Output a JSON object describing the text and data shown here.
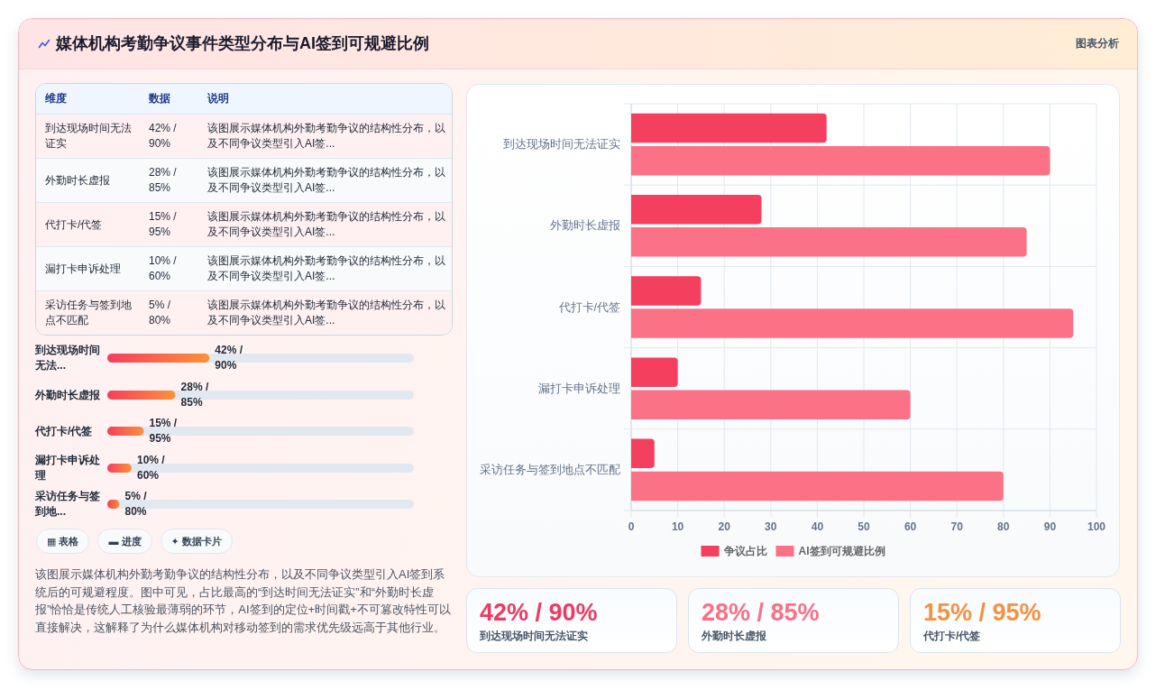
{
  "chart_data": [
    {
      "type": "other",
      "title": "媒体机构考勤争议事件类型分布与AI签到可规避比例",
      "annotations": [
        "图表分析"
      ]
    },
    {
      "type": "other",
      "categories": [
        "维度",
        "数据",
        "说明"
      ],
      "cell_labels": [
        [
          "到达现场时间无法证实",
          "42% / 90%",
          "该图展示媒体机构外勤考勤争议的结构性分布，以及不同争议类型引入AI签..."
        ],
        [
          "外勤时长虚报",
          "28% / 85%",
          "该图展示媒体机构外勤考勤争议的结构性分布，以及不同争议类型引入AI签..."
        ],
        [
          "代打卡/代签",
          "15% / 95%",
          "该图展示媒体机构外勤考勤争议的结构性分布，以及不同争议类型引入AI签..."
        ],
        [
          "漏打卡申诉处理",
          "10% / 60%",
          "该图展示媒体机构外勤考勤争议的结构性分布，以及不同争议类型引入AI签..."
        ],
        [
          "采访任务与签到地点不匹配",
          "5% / 80%",
          "该图展示媒体机构外勤考勤争议的结构性分布，以及不同争议类型引入AI签..."
        ]
      ]
    },
    {
      "type": "bar",
      "orientation": "horizontal",
      "categories": [
        "到达现场时间无法...",
        "外勤时长虚报",
        "代打卡/代签",
        "漏打卡申诉处理",
        "采访任务与签到地..."
      ],
      "series": [
        {
          "color": "#f43f5e",
          "values": [
            42,
            28,
            15,
            10,
            5
          ],
          "value_labels": [
            "42% / 90%",
            "28% / 85%",
            "15% / 95%",
            "10% / 60%",
            "5% / 80%"
          ]
        }
      ],
      "tick_labels": "y"
    },
    {
      "type": "other",
      "annotations": [
        "▦ 表格",
        "▬ 进度",
        "✦ 数据卡片"
      ]
    },
    {
      "type": "other",
      "annotations": [
        "该图展示媒体机构外勤考勤争议的结构性分布，以及不同争议类型引入AI签到系统后的可规避程度。图中可见，占比最高的“到达时间无法证实”和“外勤时长虚报”恰恰是传统人工核验最薄弱的环节，AI签到的定位+时间戳+不可篡改特性可以直接解决，这解释了为什么媒体机构对移动签到的需求优先级远高于其他行业。"
      ]
    },
    {
      "type": "bar",
      "orientation": "horizontal",
      "categories": [
        "到达现场时间无法证实",
        "外勤时长虚报",
        "代打卡/代签",
        "漏打卡申诉处理",
        "采访任务与签到地点不匹配"
      ],
      "series": [
        {
          "name": "争议占比",
          "color": "#f43f5e",
          "values": [
            42,
            28,
            15,
            10,
            5
          ]
        },
        {
          "name": "AI签到可规避比例",
          "color": "#fb7185",
          "values": [
            90,
            85,
            95,
            60,
            80
          ]
        }
      ],
      "xlim": [
        0,
        100
      ],
      "xticks": [
        0,
        10,
        20,
        30,
        40,
        50,
        60,
        70,
        80,
        90,
        100
      ],
      "grid": true,
      "legend": "bottom"
    },
    {
      "type": "other",
      "categories": [
        "到达现场时间无法证实",
        "外勤时长虚报",
        "代打卡/代签"
      ],
      "value_labels": [
        "42% / 90%",
        "28% / 85%",
        "15% / 95%"
      ]
    }
  ]
}
